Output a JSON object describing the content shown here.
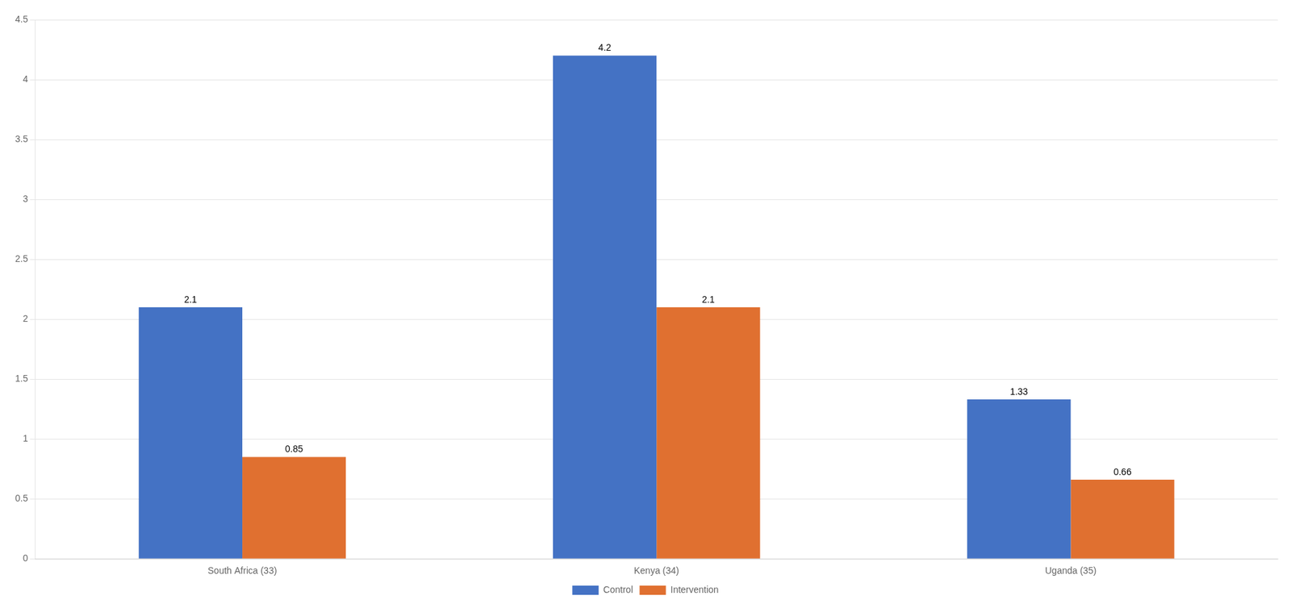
{
  "chart_data": {
    "type": "bar",
    "categories": [
      "South Africa (33)",
      "Kenya (34)",
      "Uganda (35)"
    ],
    "series": [
      {
        "name": "Control",
        "color": "#4472C4",
        "values": [
          2.1,
          4.2,
          1.33
        ]
      },
      {
        "name": "Intervention",
        "color": "#E07030",
        "values": [
          0.85,
          2.1,
          0.66
        ]
      }
    ],
    "ylim": [
      0,
      4.5
    ],
    "yticks": [
      0,
      0.5,
      1,
      1.5,
      2,
      2.5,
      3,
      3.5,
      4,
      4.5
    ],
    "grid": true,
    "legend": "bottom",
    "data_labels": true
  }
}
